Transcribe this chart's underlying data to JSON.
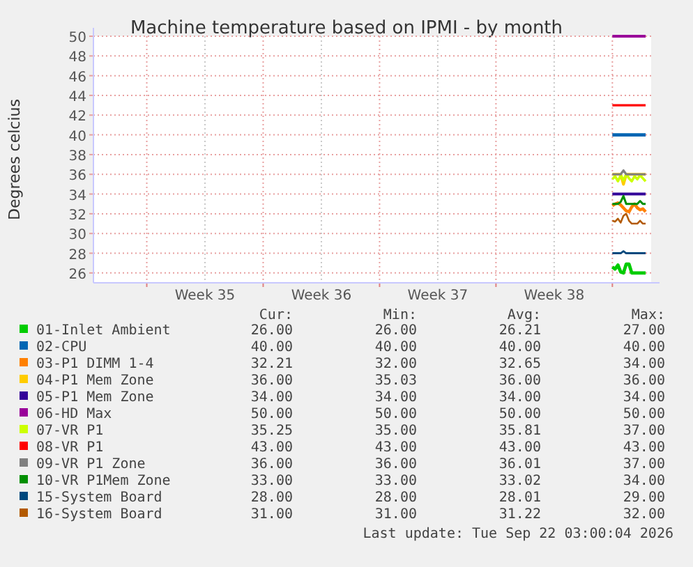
{
  "chart_data": {
    "type": "line",
    "title": "Machine temperature based on IPMI - by month",
    "ylabel": "Degrees celcius",
    "x": [
      "2026-09-21T00:00",
      "2026-09-21T04:00",
      "2026-09-21T08:00",
      "2026-09-21T12:00",
      "2026-09-21T16:00",
      "2026-09-21T20:00",
      "2026-09-22T00:00",
      "2026-09-22T04:00",
      "2026-09-22T08:00",
      "2026-09-22T12:00",
      "2026-09-22T16:00",
      "2026-09-22T20:00",
      "2026-09-23T00:00"
    ],
    "xlim": [
      "2026-08-20T19:00",
      "2026-09-23T08:00"
    ],
    "xticks": [
      {
        "value": "2026-08-24",
        "label": null
      },
      {
        "value": "2026-08-27T12:00",
        "label": "Week 35"
      },
      {
        "value": "2026-08-31",
        "label": null
      },
      {
        "value": "2026-09-03T12:00",
        "label": "Week 36"
      },
      {
        "value": "2026-09-07",
        "label": null
      },
      {
        "value": "2026-09-10T12:00",
        "label": "Week 37"
      },
      {
        "value": "2026-09-14",
        "label": null
      },
      {
        "value": "2026-09-17T12:00",
        "label": "Week 38"
      },
      {
        "value": "2026-09-21",
        "label": null
      }
    ],
    "ylim": [
      25,
      50
    ],
    "yticks": [
      26,
      28,
      30,
      32,
      34,
      36,
      38,
      40,
      42,
      44,
      46,
      48,
      50
    ],
    "grid": true,
    "legend": "bottom",
    "marker": "none",
    "line_style": "solid",
    "series": [
      {
        "name": "01-Inlet Ambient",
        "color": "#00cc00",
        "values": [
          26.6,
          26.4,
          26.8,
          26.1,
          26.0,
          26.9,
          26.9,
          26.0,
          26.0,
          26.0,
          26.0,
          26.0,
          26.0
        ]
      },
      {
        "name": "02-CPU",
        "color": "#0066b3",
        "values": [
          40,
          40,
          40,
          40,
          40,
          40,
          40,
          40,
          40,
          40,
          40,
          40,
          40
        ]
      },
      {
        "name": "03-P1 DIMM 1-4",
        "color": "#ff8000",
        "values": [
          32.8,
          33.0,
          33.1,
          32.9,
          32.6,
          32.3,
          32.2,
          32.7,
          33.0,
          32.6,
          32.4,
          32.5,
          32.2
        ]
      },
      {
        "name": "04-P1 Mem Zone",
        "color": "#ffcc00",
        "values": [
          36,
          36,
          36,
          36,
          35.0,
          36,
          36,
          36,
          36,
          36,
          36,
          36,
          36
        ]
      },
      {
        "name": "05-P1 Mem Zone",
        "color": "#330099",
        "values": [
          34,
          34,
          34,
          34,
          34,
          34,
          34,
          34,
          34,
          34,
          34,
          34,
          34
        ]
      },
      {
        "name": "06-HD Max",
        "color": "#990099",
        "values": [
          50,
          50,
          50,
          50,
          50,
          50,
          50,
          50,
          50,
          50,
          50,
          50,
          50
        ]
      },
      {
        "name": "07-VR P1",
        "color": "#ccff00",
        "values": [
          35.5,
          35.8,
          35.3,
          35.9,
          35.4,
          36.0,
          35.6,
          35.3,
          35.8,
          35.5,
          35.9,
          35.6,
          35.3
        ]
      },
      {
        "name": "08-VR P1",
        "color": "#ff0000",
        "values": [
          43,
          43,
          43,
          43,
          43,
          43,
          43,
          43,
          43,
          43,
          43,
          43,
          43
        ]
      },
      {
        "name": "09-VR P1 Zone",
        "color": "#808080",
        "values": [
          36,
          36,
          36,
          36,
          36.4,
          36,
          36,
          36,
          36,
          36,
          36,
          36,
          36
        ]
      },
      {
        "name": "10-VR P1Mem Zone",
        "color": "#008f00",
        "values": [
          33,
          33,
          33,
          33.2,
          33.8,
          33,
          33,
          33,
          33,
          33,
          33.3,
          33,
          33
        ]
      },
      {
        "name": "15-System Board",
        "color": "#00487d",
        "values": [
          28,
          28,
          28,
          28,
          28.2,
          28,
          28,
          28,
          28,
          28,
          28,
          28,
          28
        ]
      },
      {
        "name": "16-System Board",
        "color": "#b35a00",
        "values": [
          31.3,
          31.2,
          31.5,
          31.1,
          31.8,
          32.0,
          31.3,
          31.0,
          31.0,
          31.0,
          31.3,
          31.0,
          31.0
        ]
      }
    ],
    "annotations": [
      "Cur:",
      "Min:",
      "Avg:",
      "Max:",
      "26.00",
      "26.00",
      "26.21",
      "27.00",
      "40.00",
      "40.00",
      "40.00",
      "40.00",
      "32.21",
      "32.00",
      "32.65",
      "34.00",
      "36.00",
      "35.03",
      "36.00",
      "36.00",
      "34.00",
      "34.00",
      "34.00",
      "34.00",
      "50.00",
      "50.00",
      "50.00",
      "50.00",
      "35.25",
      "35.00",
      "35.81",
      "37.00",
      "43.00",
      "43.00",
      "43.00",
      "43.00",
      "36.00",
      "36.00",
      "36.01",
      "37.00",
      "33.00",
      "33.00",
      "33.02",
      "34.00",
      "28.00",
      "28.00",
      "28.01",
      "29.00",
      "31.00",
      "31.00",
      "31.22",
      "32.00",
      "Last update: Tue Sep 22 03:00:04 2026"
    ]
  }
}
